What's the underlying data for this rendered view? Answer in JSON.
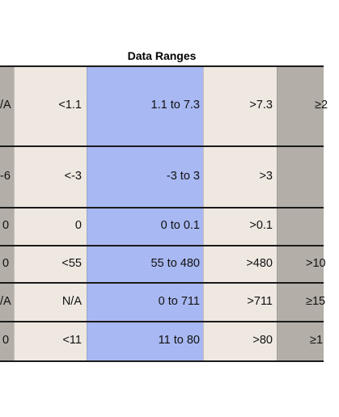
{
  "table": {
    "title": "Data Ranges",
    "rows": [
      [
        "/A",
        "<1.1",
        "1.1 to 7.3",
        ">7.3",
        "≥2"
      ],
      [
        "-6",
        "<-3",
        "-3 to 3",
        ">3",
        ""
      ],
      [
        "0",
        "0",
        "0 to 0.1",
        ">0.1",
        ""
      ],
      [
        "0",
        "<55",
        "55 to 480",
        ">480",
        ">10"
      ],
      [
        "/A",
        "N/A",
        "0 to 711",
        ">711",
        "≥15"
      ],
      [
        "0",
        "<11",
        "11  to 80",
        ">80",
        "≥1"
      ]
    ]
  },
  "colors": {
    "gray_band": "#b3aea7",
    "beige_band": "#eee8e1",
    "blue_band": "#a8b8f2",
    "rule": "#1a1a1a"
  }
}
